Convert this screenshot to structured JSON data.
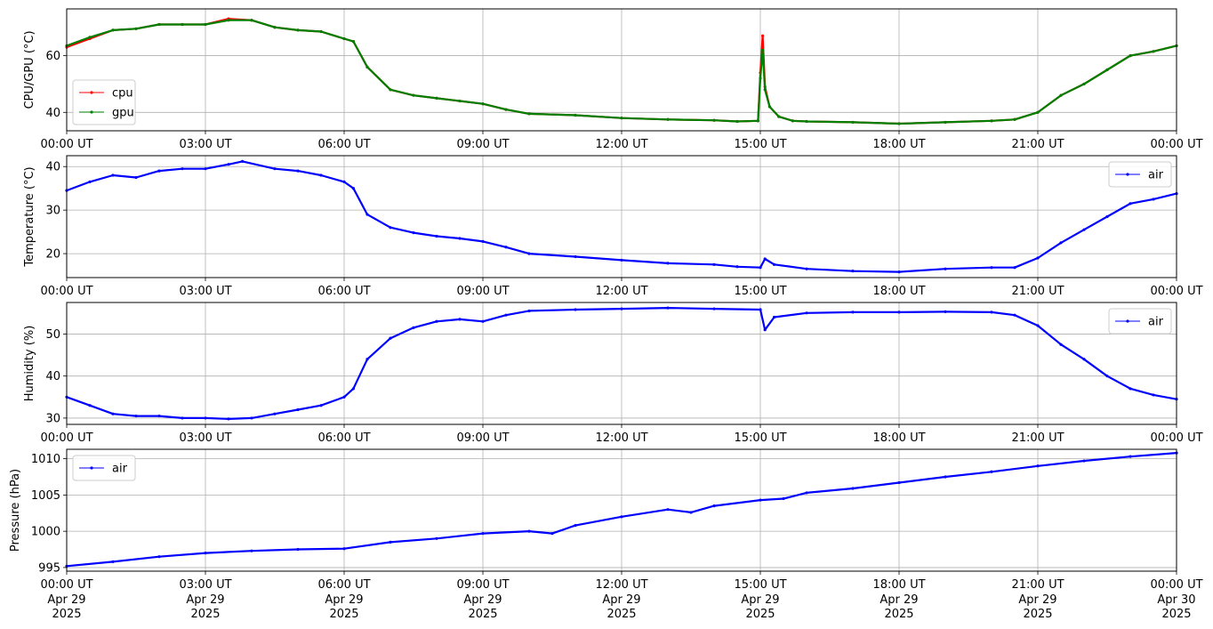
{
  "figure": {
    "background": "#ffffff",
    "grid_color": "#b0b0b0"
  },
  "x_ticks": [
    "00:00 UT",
    "03:00 UT",
    "06:00 UT",
    "09:00 UT",
    "12:00 UT",
    "15:00 UT",
    "18:00 UT",
    "21:00 UT",
    "00:00 UT"
  ],
  "x_date_lines": [
    [
      "Apr 29",
      "2025"
    ],
    [
      "Apr 29",
      "2025"
    ],
    [
      "Apr 29",
      "2025"
    ],
    [
      "Apr 29",
      "2025"
    ],
    [
      "Apr 29",
      "2025"
    ],
    [
      "Apr 29",
      "2025"
    ],
    [
      "Apr 29",
      "2025"
    ],
    [
      "Apr 29",
      "2025"
    ],
    [
      "Apr 30",
      "2025"
    ]
  ],
  "chart_data": [
    {
      "type": "line",
      "ylabel": "CPU/GPU (°C)",
      "xlim": [
        "2025-04-29 00:00",
        "2025-04-30 00:00"
      ],
      "ylim": [
        33.5,
        76.5
      ],
      "yticks": [
        40,
        60
      ],
      "grid": true,
      "legend": "lower-left",
      "series": [
        {
          "name": "cpu",
          "color": "#ff0000",
          "x": [
            0,
            0.5,
            1,
            1.5,
            2,
            2.5,
            3,
            3.5,
            4,
            4.5,
            5,
            5.5,
            6,
            6.2,
            6.5,
            7,
            7.5,
            8,
            8.5,
            9,
            9.5,
            10,
            11,
            12,
            13,
            14,
            14.5,
            14.95,
            15.0,
            15.05,
            15.1,
            15.2,
            15.4,
            15.7,
            16,
            17,
            18,
            19,
            20,
            20.5,
            21,
            21.5,
            22,
            22.5,
            23,
            23.5,
            24
          ],
          "y": [
            63,
            66,
            69,
            69.5,
            71,
            71,
            71,
            73,
            72.5,
            70,
            69,
            68.5,
            66,
            65,
            56,
            48,
            46,
            45,
            44,
            43,
            41,
            39.5,
            39,
            38,
            37.5,
            37.2,
            36.8,
            37,
            54,
            67,
            49,
            42,
            38.5,
            37,
            36.8,
            36.5,
            36,
            36.5,
            37,
            37.5,
            40,
            46,
            50,
            55,
            60,
            61.5,
            63.5
          ]
        },
        {
          "name": "gpu",
          "color": "#008000",
          "x": [
            0,
            0.5,
            1,
            1.5,
            2,
            2.5,
            3,
            3.5,
            4,
            4.5,
            5,
            5.5,
            6,
            6.2,
            6.5,
            7,
            7.5,
            8,
            8.5,
            9,
            9.5,
            10,
            11,
            12,
            13,
            14,
            14.5,
            14.95,
            15.0,
            15.05,
            15.1,
            15.2,
            15.4,
            15.7,
            16,
            17,
            18,
            19,
            20,
            20.5,
            21,
            21.5,
            22,
            22.5,
            23,
            23.5,
            24
          ],
          "y": [
            63.5,
            66.5,
            69,
            69.5,
            71,
            71,
            71,
            72.5,
            72.5,
            70,
            69,
            68.5,
            66,
            65,
            56,
            48,
            46,
            45,
            44,
            43,
            41,
            39.5,
            39,
            38,
            37.5,
            37.2,
            36.8,
            37,
            52,
            62,
            48,
            42,
            38.5,
            37,
            36.8,
            36.5,
            36,
            36.5,
            37,
            37.5,
            40,
            46,
            50,
            55,
            60,
            61.5,
            63.5
          ]
        }
      ]
    },
    {
      "type": "line",
      "ylabel": "Temperature (°C)",
      "xlim": [
        "2025-04-29 00:00",
        "2025-04-30 00:00"
      ],
      "ylim": [
        14.5,
        42.5
      ],
      "yticks": [
        20,
        30,
        40
      ],
      "grid": true,
      "legend": "top-right",
      "series": [
        {
          "name": "air",
          "color": "#0000ff",
          "x": [
            0,
            0.5,
            1,
            1.5,
            2,
            2.5,
            3,
            3.5,
            3.8,
            4.5,
            5,
            5.5,
            6,
            6.2,
            6.5,
            7,
            7.5,
            8,
            8.5,
            9,
            9.5,
            10,
            11,
            12,
            13,
            14,
            14.5,
            15,
            15.1,
            15.3,
            16,
            17,
            18,
            19,
            20,
            20.5,
            21,
            21.5,
            22,
            22.5,
            23,
            23.5,
            24
          ],
          "y": [
            34.5,
            36.5,
            38,
            37.5,
            39,
            39.5,
            39.5,
            40.5,
            41.2,
            39.5,
            39,
            38,
            36.5,
            35,
            29,
            26,
            24.8,
            24,
            23.5,
            22.8,
            21.5,
            20,
            19.3,
            18.5,
            17.8,
            17.5,
            17,
            16.8,
            18.8,
            17.5,
            16.5,
            16,
            15.8,
            16.5,
            16.8,
            16.8,
            19,
            22.5,
            25.5,
            28.5,
            31.5,
            32.5,
            33.8
          ]
        }
      ]
    },
    {
      "type": "line",
      "ylabel": "Humidity (%)",
      "xlim": [
        "2025-04-29 00:00",
        "2025-04-30 00:00"
      ],
      "ylim": [
        28.5,
        57.5
      ],
      "yticks": [
        30,
        40,
        50
      ],
      "grid": true,
      "legend": "top-right",
      "series": [
        {
          "name": "air",
          "color": "#0000ff",
          "x": [
            0,
            0.5,
            1,
            1.5,
            2,
            2.5,
            3,
            3.5,
            4,
            4.5,
            5,
            5.5,
            6,
            6.2,
            6.5,
            7,
            7.5,
            8,
            8.5,
            9,
            9.5,
            10,
            11,
            12,
            13,
            14,
            15,
            15.1,
            15.3,
            16,
            17,
            18,
            19,
            20,
            20.5,
            21,
            21.5,
            22,
            22.5,
            23,
            23.5,
            24
          ],
          "y": [
            35,
            33,
            31,
            30.5,
            30.5,
            30,
            30,
            29.8,
            30,
            31,
            32,
            33,
            35,
            37,
            44,
            49,
            51.5,
            53,
            53.5,
            53,
            54.5,
            55.5,
            55.8,
            56,
            56.2,
            56,
            55.8,
            51,
            54,
            55,
            55.2,
            55.2,
            55.3,
            55.2,
            54.5,
            52,
            47.5,
            44,
            40,
            37,
            35.5,
            34.5
          ]
        }
      ]
    },
    {
      "type": "line",
      "ylabel": "Pressure (hPa)",
      "xlim": [
        "2025-04-29 00:00",
        "2025-04-30 00:00"
      ],
      "ylim": [
        994.5,
        1011.3
      ],
      "yticks": [
        995,
        1000,
        1005,
        1010
      ],
      "grid": true,
      "legend": "top-left",
      "series": [
        {
          "name": "air",
          "color": "#0000ff",
          "x": [
            0,
            1,
            2,
            3,
            4,
            5,
            6,
            7,
            8,
            9,
            10,
            10.5,
            11,
            12,
            13,
            13.5,
            14,
            15,
            15.5,
            16,
            17,
            18,
            19,
            20,
            21,
            22,
            23,
            24
          ],
          "y": [
            995.2,
            995.8,
            996.5,
            997,
            997.3,
            997.5,
            997.6,
            998.5,
            999,
            999.7,
            1000,
            999.7,
            1000.8,
            1002,
            1003,
            1002.6,
            1003.5,
            1004.3,
            1004.5,
            1005.3,
            1005.9,
            1006.7,
            1007.5,
            1008.2,
            1009,
            1009.7,
            1010.3,
            1010.8
          ]
        }
      ]
    }
  ]
}
